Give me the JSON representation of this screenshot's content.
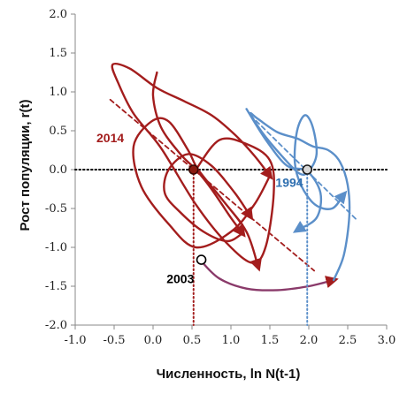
{
  "chart_data": {
    "type": "line",
    "xlabel": "Численность, ln N(t-1)",
    "ylabel": "Рост популяции, r(t)",
    "xlim": [
      -1.0,
      3.0
    ],
    "ylim": [
      -2.0,
      2.0
    ],
    "xticks": [
      "-1.0",
      "-0.5",
      "0.0",
      "0.5",
      "1.0",
      "1.5",
      "2.0",
      "2.5",
      "3.0"
    ],
    "yticks": [
      "2.0",
      "1.5",
      "1.0",
      "0.5",
      "0.0",
      "-0.5",
      "-1.0",
      "-1.5",
      "-2.0"
    ],
    "grid": false,
    "zero_line": {
      "y": 0.0,
      "style": "dotted",
      "color": "#000000"
    },
    "colors": {
      "red": "#a31d1d",
      "blue": "#5b8fc9",
      "transition": "#8a3a6a"
    },
    "annotations": [
      {
        "id": "2014",
        "text": "2014",
        "x": -0.55,
        "y": 0.35,
        "color": "#a31d1d"
      },
      {
        "id": "1994",
        "text": "1994",
        "x": 1.75,
        "y": -0.22,
        "color": "#2f6fb0"
      },
      {
        "id": "2003",
        "text": "2003",
        "x": 0.35,
        "y": -1.46,
        "color": "#000000"
      }
    ],
    "series": [
      {
        "color": "#a31d1d",
        "style": "solid",
        "points": [
          [
            0.55,
            0.0
          ],
          [
            0.85,
            0.38
          ],
          [
            1.2,
            0.33
          ],
          [
            1.5,
            0.12
          ],
          [
            1.55,
            -0.3
          ],
          [
            1.45,
            -0.98
          ],
          [
            1.28,
            -1.2
          ],
          [
            0.95,
            -0.95
          ],
          [
            0.55,
            -0.45
          ],
          [
            0.1,
            0.28
          ],
          [
            -0.25,
            0.72
          ],
          [
            -0.45,
            1.12
          ],
          [
            -0.52,
            1.35
          ],
          [
            -0.3,
            1.3
          ],
          [
            0.05,
            1.05
          ],
          [
            0.4,
            0.88
          ],
          [
            0.75,
            0.7
          ],
          [
            1.05,
            0.45
          ],
          [
            1.3,
            0.18
          ],
          [
            1.5,
            -0.08
          ]
        ]
      },
      {
        "color": "#a31d1d",
        "style": "solid",
        "points": [
          [
            1.5,
            -0.08
          ],
          [
            1.3,
            -0.45
          ],
          [
            1.0,
            -0.8
          ],
          [
            0.55,
            -1.0
          ],
          [
            0.2,
            -0.7
          ],
          [
            -0.15,
            -0.22
          ],
          [
            -0.25,
            0.3
          ],
          [
            -0.02,
            0.62
          ],
          [
            0.2,
            0.62
          ],
          [
            0.45,
            0.25
          ],
          [
            0.58,
            0.0
          ],
          [
            0.9,
            -0.4
          ],
          [
            1.2,
            -0.8
          ],
          [
            1.35,
            -1.25
          ]
        ]
      },
      {
        "color": "#a31d1d",
        "style": "solid",
        "points": [
          [
            0.05,
            1.25
          ],
          [
            0.0,
            0.95
          ],
          [
            0.1,
            0.55
          ],
          [
            0.35,
            0.2
          ],
          [
            0.55,
            0.0
          ],
          [
            0.75,
            -0.25
          ],
          [
            1.0,
            -0.62
          ],
          [
            1.15,
            -0.82
          ]
        ]
      },
      {
        "color": "#a31d1d",
        "style": "solid",
        "points": [
          [
            1.15,
            -0.82
          ],
          [
            0.95,
            -0.92
          ],
          [
            0.65,
            -0.8
          ],
          [
            0.35,
            -0.55
          ],
          [
            0.15,
            -0.3
          ],
          [
            0.2,
            0.0
          ],
          [
            0.45,
            0.2
          ],
          [
            0.75,
            0.05
          ],
          [
            1.05,
            -0.3
          ],
          [
            1.25,
            -0.6
          ]
        ]
      },
      {
        "color": "#a31d1d",
        "style": "dashed",
        "points": [
          [
            -0.55,
            0.9
          ],
          [
            2.07,
            -1.3
          ]
        ]
      },
      {
        "color": "#a31d1d",
        "style": "dotted",
        "points": [
          [
            0.52,
            0.0
          ],
          [
            0.52,
            -2.0
          ]
        ]
      },
      {
        "color": "#8a3a6a",
        "style": "solid",
        "points": [
          [
            0.62,
            -1.18
          ],
          [
            0.85,
            -1.4
          ],
          [
            1.2,
            -1.53
          ],
          [
            1.6,
            -1.55
          ],
          [
            2.0,
            -1.5
          ],
          [
            2.32,
            -1.42
          ]
        ]
      },
      {
        "color": "#5b8fc9",
        "style": "solid",
        "points": [
          [
            2.32,
            -1.42
          ],
          [
            2.45,
            -1.1
          ],
          [
            2.52,
            -0.6
          ],
          [
            2.5,
            -0.2
          ],
          [
            2.4,
            0.1
          ],
          [
            2.25,
            0.25
          ],
          [
            2.05,
            0.3
          ],
          [
            1.85,
            0.4
          ],
          [
            1.6,
            0.48
          ],
          [
            1.35,
            0.65
          ],
          [
            1.25,
            0.72
          ],
          [
            1.4,
            0.48
          ],
          [
            1.65,
            0.18
          ],
          [
            1.88,
            -0.05
          ],
          [
            2.0,
            -0.02
          ],
          [
            2.1,
            0.2
          ],
          [
            2.05,
            0.55
          ],
          [
            1.95,
            0.7
          ],
          [
            1.85,
            0.5
          ],
          [
            1.82,
            0.1
          ],
          [
            1.9,
            -0.2
          ],
          [
            2.08,
            -0.45
          ],
          [
            2.3,
            -0.5
          ],
          [
            2.45,
            -0.32
          ]
        ]
      },
      {
        "color": "#5b8fc9",
        "style": "solid",
        "points": [
          [
            1.2,
            0.78
          ],
          [
            1.45,
            0.38
          ],
          [
            1.72,
            0.05
          ],
          [
            1.98,
            -0.02
          ],
          [
            2.15,
            -0.3
          ],
          [
            2.1,
            -0.62
          ],
          [
            1.85,
            -0.78
          ]
        ]
      },
      {
        "color": "#5b8fc9",
        "style": "dashed",
        "points": [
          [
            1.25,
            0.7
          ],
          [
            2.62,
            -0.65
          ]
        ]
      },
      {
        "color": "#5b8fc9",
        "style": "dotted",
        "points": [
          [
            1.98,
            0.0
          ],
          [
            1.98,
            -2.0
          ]
        ]
      }
    ],
    "markers": [
      {
        "id": "center-2014",
        "x": 0.52,
        "y": 0.0,
        "fill": "#8a1a10",
        "stroke": "#3a0a05"
      },
      {
        "id": "center-1994",
        "x": 1.98,
        "y": 0.0,
        "fill": "#d8d8d8",
        "stroke": "#1a1a1a"
      },
      {
        "id": "point-2003",
        "x": 0.62,
        "y": -1.16,
        "fill": "#ffffff",
        "stroke": "#000000"
      }
    ]
  }
}
